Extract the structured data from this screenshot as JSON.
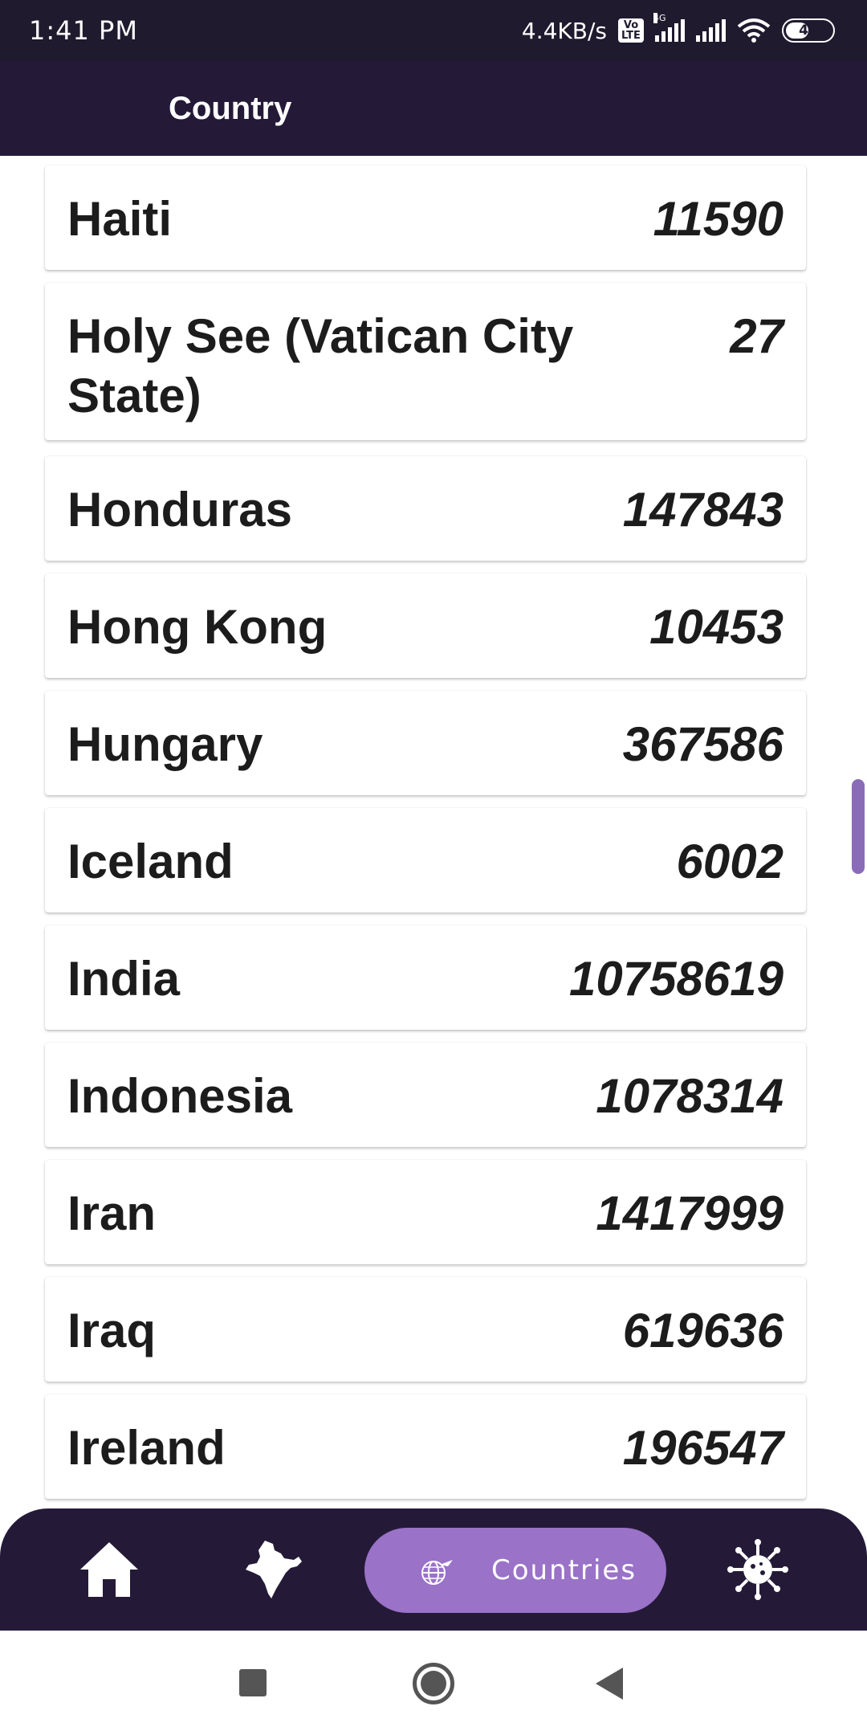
{
  "status_bar": {
    "time": "1:41 PM",
    "net_speed": "4.4KB/s",
    "volte_top": "Vo",
    "volte_bottom": "LTE",
    "network_type": "4G",
    "battery": "49"
  },
  "app_bar": {
    "title": "Country"
  },
  "countries": [
    {
      "name": "Haiti",
      "value": "11590"
    },
    {
      "name": "Holy See (Vatican City State)",
      "value": "27"
    },
    {
      "name": "Honduras",
      "value": "147843"
    },
    {
      "name": "Hong Kong",
      "value": "10453"
    },
    {
      "name": "Hungary",
      "value": "367586"
    },
    {
      "name": "Iceland",
      "value": "6002"
    },
    {
      "name": "India",
      "value": "10758619"
    },
    {
      "name": "Indonesia",
      "value": "1078314"
    },
    {
      "name": "Iran",
      "value": "1417999"
    },
    {
      "name": "Iraq",
      "value": "619636"
    },
    {
      "name": "Ireland",
      "value": "196547"
    }
  ],
  "bottom_nav": {
    "items": [
      {
        "icon": "home-icon"
      },
      {
        "icon": "india-map-icon"
      },
      {
        "icon": "globe-icon",
        "label": "Countries",
        "active": true
      },
      {
        "icon": "virus-icon"
      }
    ]
  },
  "colors": {
    "status_bar": "#1f1a2e",
    "app_bar": "#241a38",
    "accent": "#9a72c8"
  }
}
